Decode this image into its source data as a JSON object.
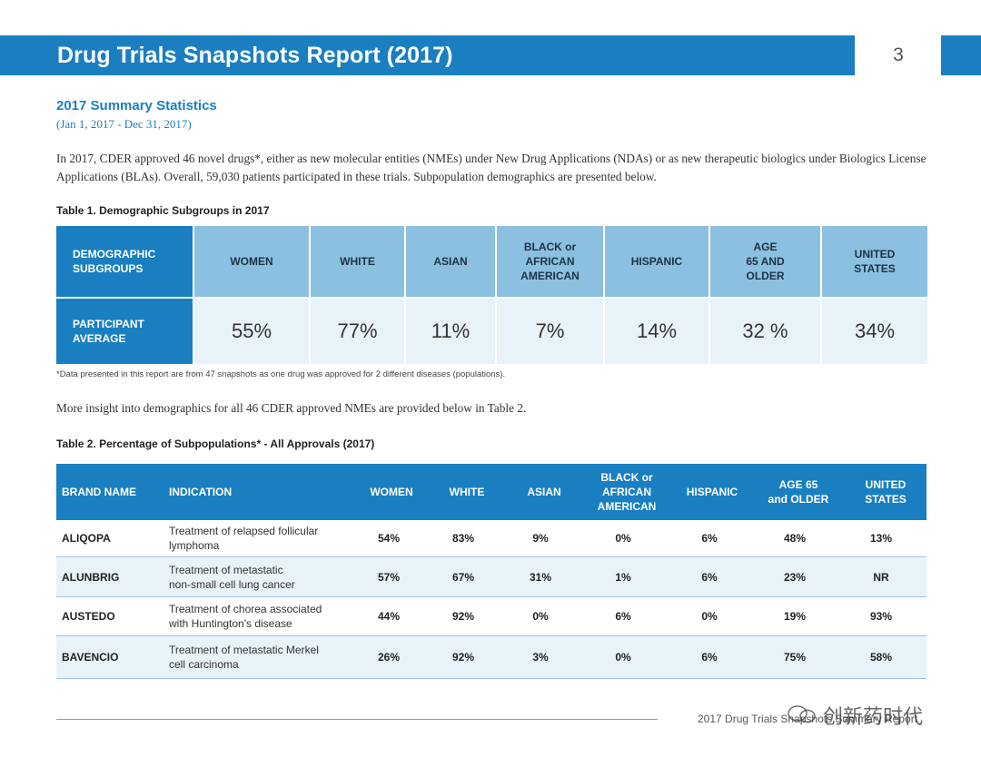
{
  "banner": {
    "title": "Drug Trials Snapshots Report (2017)",
    "page_number": "3"
  },
  "summary": {
    "title": "2017 Summary Statistics",
    "date_range": "(Jan 1, 2017 - Dec 31, 2017)",
    "intro": "In 2017, CDER approved 46 novel drugs*, either as new molecular entities (NMEs) under New Drug Applications (NDAs) or as new therapeutic biologics under Biologics License Applications (BLAs). Overall, 59,030 patients participated in these trials. Subpopulation demographics are presented below."
  },
  "table1": {
    "caption": "Table 1. Demographic Subgroups in 2017",
    "corner_header": "DEMOGRAPHIC\nSUBGROUPS",
    "headers": [
      "WOMEN",
      "WHITE",
      "ASIAN",
      "BLACK or\nAFRICAN\nAMERICAN",
      "HISPANIC",
      "AGE\n65 AND\nOLDER",
      "UNITED\nSTATES"
    ],
    "row_header": "PARTICIPANT\nAVERAGE",
    "values": [
      "55%",
      "77%",
      "11%",
      "7%",
      "14%",
      "32 %",
      "34%"
    ],
    "footnote": "*Data presented in this report are from 47 snapshots as one drug was approved for 2 different diseases (populations)."
  },
  "more_insight": "More insight into demographics for all 46 CDER approved NMEs are provided below in Table 2.",
  "table2": {
    "caption": "Table 2.  Percentage of Subpopulations* - All Approvals (2017)",
    "headers": [
      "BRAND NAME",
      "INDICATION",
      "WOMEN",
      "WHITE",
      "ASIAN",
      "BLACK or\nAFRICAN\nAMERICAN",
      "HISPANIC",
      "AGE 65\nand OLDER",
      "UNITED\nSTATES"
    ],
    "rows": [
      {
        "brand": "ALIQOPA",
        "indication": "Treatment of relapsed follicular\nlymphoma",
        "women": "54%",
        "white": "83%",
        "asian": "9%",
        "black": "0%",
        "hispanic": "6%",
        "age65": "48%",
        "us": "13%"
      },
      {
        "brand": "ALUNBRIG",
        "indication": "Treatment of metastatic\nnon-small cell lung cancer",
        "women": "57%",
        "white": "67%",
        "asian": "31%",
        "black": "1%",
        "hispanic": "6%",
        "age65": "23%",
        "us": "NR"
      },
      {
        "brand": "AUSTEDO",
        "indication": "Treatment of chorea associated\nwith Huntington's disease",
        "women": "44%",
        "white": "92%",
        "asian": "0%",
        "black": "6%",
        "hispanic": "0%",
        "age65": "19%",
        "us": "93%"
      },
      {
        "brand": "BAVENCIO",
        "indication": "Treatment of metastatic Merkel\ncell carcinoma",
        "women": "26%",
        "white": "92%",
        "asian": "3%",
        "black": "0%",
        "hispanic": "6%",
        "age65": "75%",
        "us": "58%"
      }
    ]
  },
  "footer": {
    "text": "2017 Drug Trials Snapshots Summary Report",
    "watermark": "创新药时代"
  },
  "colors": {
    "brand_blue": "#1a7fc1",
    "header_light": "#8cc0e0",
    "row_light": "#e8f2f9"
  }
}
